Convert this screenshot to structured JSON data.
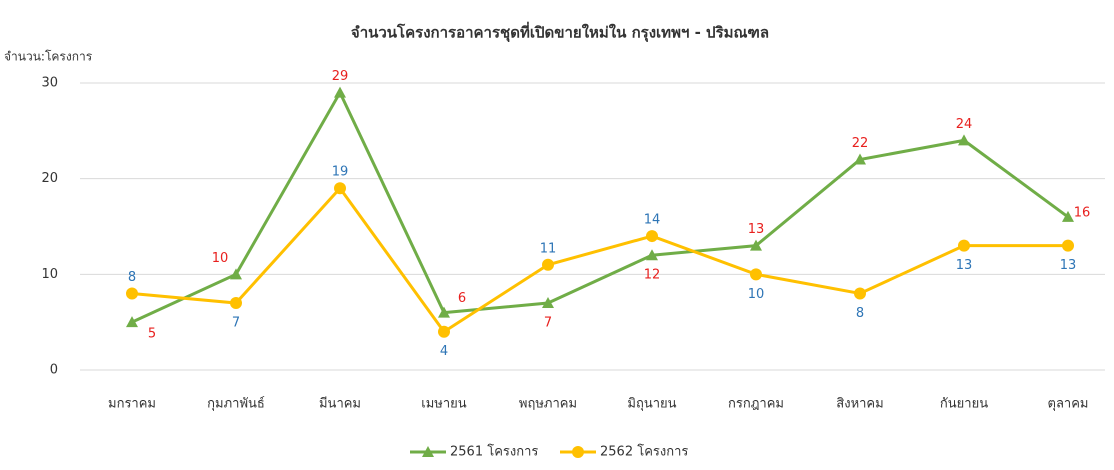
{
  "chart_data": {
    "type": "line",
    "title": "จำนวนโครงการอาคารชุดที่เปิดขายใหม่ใน กรุงเทพฯ - ปริมณฑล",
    "y_label": "จำนวน:โครงการ",
    "categories": [
      "มกราคม",
      "กุมภาพันธ์",
      "มีนาคม",
      "เมษายน",
      "พฤษภาคม",
      "มิถุนายน",
      "กรกฎาคม",
      "สิงหาคม",
      "กันยายน",
      "ตุลาคม"
    ],
    "series": [
      {
        "name": "2561 โครงการ",
        "color": "#70ad47",
        "label_color": "#e8201e",
        "marker": "triangle",
        "values": [
          5,
          10,
          29,
          6,
          7,
          12,
          13,
          22,
          24,
          16
        ]
      },
      {
        "name": "2562 โครงการ",
        "color": "#ffc000",
        "label_color": "#2e75b6",
        "marker": "circle",
        "values": [
          8,
          7,
          19,
          4,
          11,
          14,
          10,
          8,
          13,
          13
        ]
      }
    ],
    "ylim": [
      0,
      30
    ],
    "yticks": [
      0,
      10,
      20,
      30
    ],
    "grid": true,
    "legend": "bottom"
  }
}
